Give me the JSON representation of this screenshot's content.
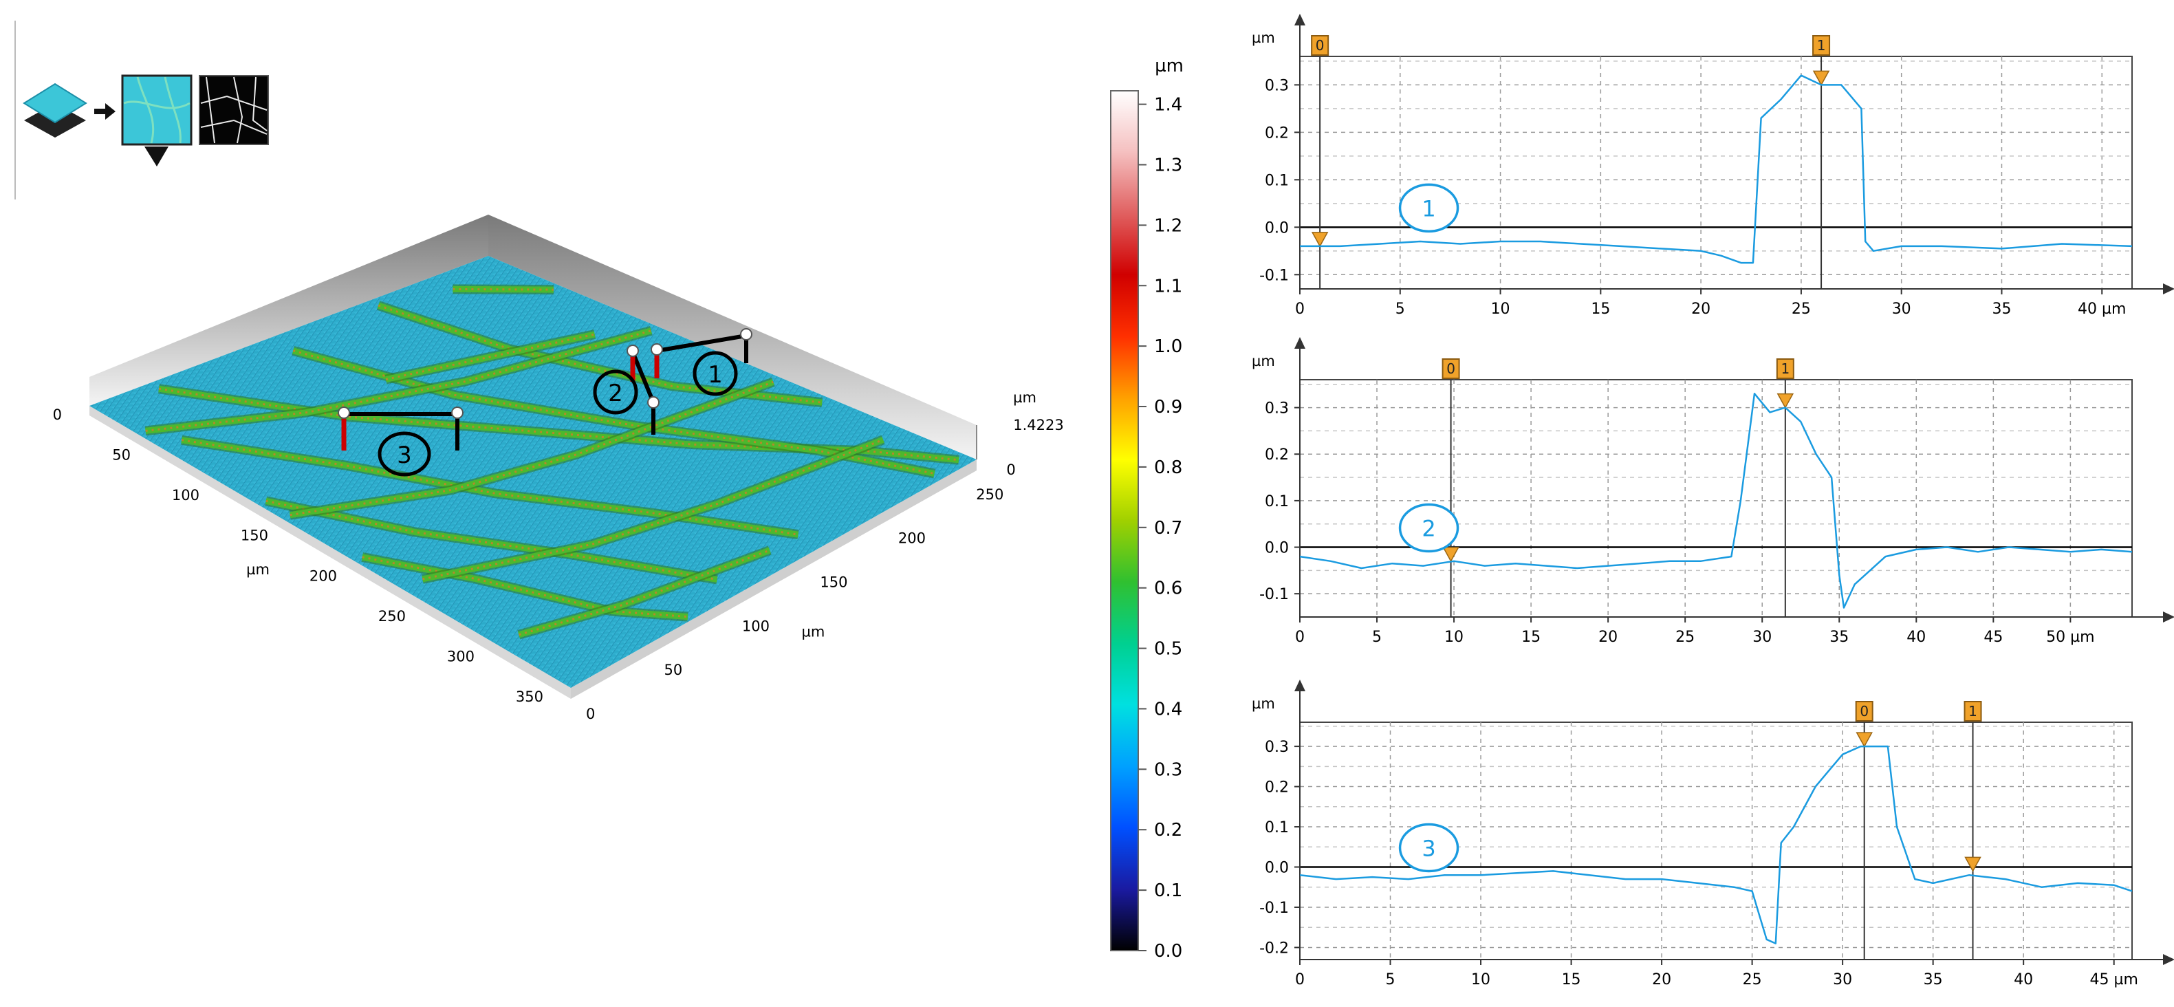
{
  "thumbnails": {
    "stack_icon": "stacked-layers-icon",
    "arrow_icon": "arrow-right-icon",
    "height_thumb": "height-map-thumbnail",
    "mask_thumb": "network-mask-thumbnail",
    "marker_icon": "triangle-down-icon"
  },
  "surface3d": {
    "axis_x_ticks": [
      "0",
      "50",
      "100",
      "150",
      "200",
      "250",
      "300",
      "350"
    ],
    "axis_x_label": "µm",
    "axis_y_ticks": [
      "0",
      "50",
      "100",
      "150",
      "200",
      "250"
    ],
    "axis_y_label": "µm",
    "axis_z_label": "µm",
    "axis_z_max": "1.4223",
    "axis_z_zero": "0",
    "profile_markers": [
      "1",
      "2",
      "3"
    ],
    "colors": {
      "base": "#2aa9c8",
      "ridge": "#4cb82e",
      "peak": "#b5892a"
    }
  },
  "colorbar": {
    "unit": "µm",
    "ticks": [
      "0.0",
      "0.1",
      "0.2",
      "0.3",
      "0.4",
      "0.5",
      "0.6",
      "0.7",
      "0.8",
      "0.9",
      "1.0",
      "1.1",
      "1.2",
      "1.3",
      "1.4"
    ],
    "colors": [
      "#000000",
      "#1a1aa0",
      "#0050ff",
      "#00a0ff",
      "#00e0e0",
      "#00d090",
      "#30c030",
      "#a0d000",
      "#ffff00",
      "#ffa000",
      "#ff3000",
      "#d00000",
      "#e06060",
      "#f5c0c0",
      "#ffffff"
    ]
  },
  "chart_data": [
    {
      "type": "line",
      "y_unit": "µm",
      "x_unit": "µm",
      "label": "1",
      "xlim": [
        0,
        41.5
      ],
      "ylim": [
        -0.13,
        0.36
      ],
      "xticks": [
        "0",
        "5",
        "10",
        "15",
        "20",
        "25",
        "30",
        "35",
        "40 µm"
      ],
      "xtick_values": [
        0,
        5,
        10,
        15,
        20,
        25,
        30,
        35,
        40
      ],
      "yticks": [
        "-0.1",
        "0.0",
        "0.1",
        "0.2",
        "0.3"
      ],
      "ytick_values": [
        -0.1,
        0.0,
        0.1,
        0.2,
        0.3
      ],
      "cursors": [
        {
          "label": "0",
          "x": 1.0,
          "y": -0.04
        },
        {
          "label": "1",
          "x": 26.0,
          "y": 0.3
        }
      ],
      "x": [
        0,
        2,
        4,
        6,
        8,
        10,
        12,
        14,
        16,
        18,
        20,
        21,
        22,
        22.6,
        23,
        24,
        25,
        25.5,
        26,
        27,
        28,
        28.2,
        28.6,
        30,
        32,
        35,
        38,
        41.5
      ],
      "y": [
        -0.04,
        -0.04,
        -0.035,
        -0.03,
        -0.035,
        -0.03,
        -0.03,
        -0.035,
        -0.04,
        -0.045,
        -0.05,
        -0.06,
        -0.075,
        -0.075,
        0.23,
        0.27,
        0.32,
        0.31,
        0.3,
        0.3,
        0.25,
        -0.03,
        -0.05,
        -0.04,
        -0.04,
        -0.045,
        -0.035,
        -0.04
      ],
      "color": "#1a9be0"
    },
    {
      "type": "line",
      "y_unit": "µm",
      "x_unit": "µm",
      "label": "2",
      "xlim": [
        0,
        54
      ],
      "ylim": [
        -0.15,
        0.36
      ],
      "xticks": [
        "0",
        "5",
        "10",
        "15",
        "20",
        "25",
        "30",
        "35",
        "40",
        "45",
        "50 µm"
      ],
      "xtick_values": [
        0,
        5,
        10,
        15,
        20,
        25,
        30,
        35,
        40,
        45,
        50
      ],
      "yticks": [
        "-0.1",
        "0.0",
        "0.1",
        "0.2",
        "0.3"
      ],
      "ytick_values": [
        -0.1,
        0.0,
        0.1,
        0.2,
        0.3
      ],
      "cursors": [
        {
          "label": "0",
          "x": 9.8,
          "y": -0.03
        },
        {
          "label": "1",
          "x": 31.5,
          "y": 0.3
        }
      ],
      "x": [
        0,
        2,
        4,
        6,
        8,
        10,
        12,
        14,
        16,
        18,
        20,
        22,
        24,
        26,
        28,
        28.6,
        29.5,
        30.5,
        31.5,
        32.5,
        33.5,
        34.5,
        35,
        35.3,
        36,
        38,
        40,
        42,
        44,
        46,
        48,
        50,
        52,
        54
      ],
      "y": [
        -0.02,
        -0.03,
        -0.045,
        -0.035,
        -0.04,
        -0.03,
        -0.04,
        -0.035,
        -0.04,
        -0.045,
        -0.04,
        -0.035,
        -0.03,
        -0.03,
        -0.02,
        0.1,
        0.33,
        0.29,
        0.3,
        0.27,
        0.2,
        0.15,
        -0.06,
        -0.13,
        -0.08,
        -0.02,
        -0.005,
        0.0,
        -0.01,
        0.0,
        -0.005,
        -0.01,
        -0.005,
        -0.01
      ],
      "color": "#1a9be0"
    },
    {
      "type": "line",
      "y_unit": "µm",
      "x_unit": "µm",
      "label": "3",
      "xlim": [
        0,
        46
      ],
      "ylim": [
        -0.23,
        0.36
      ],
      "xticks": [
        "0",
        "5",
        "10",
        "15",
        "20",
        "25",
        "30",
        "35",
        "40",
        "45 µm"
      ],
      "xtick_values": [
        0,
        5,
        10,
        15,
        20,
        25,
        30,
        35,
        40,
        45
      ],
      "yticks": [
        "-0.2",
        "-0.1",
        "0.0",
        "0.1",
        "0.2",
        "0.3"
      ],
      "ytick_values": [
        -0.2,
        -0.1,
        0.0,
        0.1,
        0.2,
        0.3
      ],
      "cursors": [
        {
          "label": "0",
          "x": 31.2,
          "y": 0.3
        },
        {
          "label": "1",
          "x": 37.2,
          "y": -0.01
        }
      ],
      "x": [
        0,
        2,
        4,
        6,
        8,
        10,
        12,
        14,
        16,
        18,
        20,
        22,
        24,
        25,
        25.8,
        26.3,
        26.6,
        27.3,
        28.5,
        30,
        31,
        32,
        32.5,
        33,
        34,
        35,
        37,
        39,
        41,
        43,
        45,
        46
      ],
      "y": [
        -0.02,
        -0.03,
        -0.025,
        -0.03,
        -0.02,
        -0.02,
        -0.015,
        -0.01,
        -0.02,
        -0.03,
        -0.03,
        -0.04,
        -0.05,
        -0.06,
        -0.18,
        -0.19,
        0.06,
        0.1,
        0.2,
        0.28,
        0.3,
        0.3,
        0.3,
        0.1,
        -0.03,
        -0.04,
        -0.02,
        -0.03,
        -0.05,
        -0.04,
        -0.045,
        -0.06
      ],
      "color": "#1a9be0"
    }
  ]
}
